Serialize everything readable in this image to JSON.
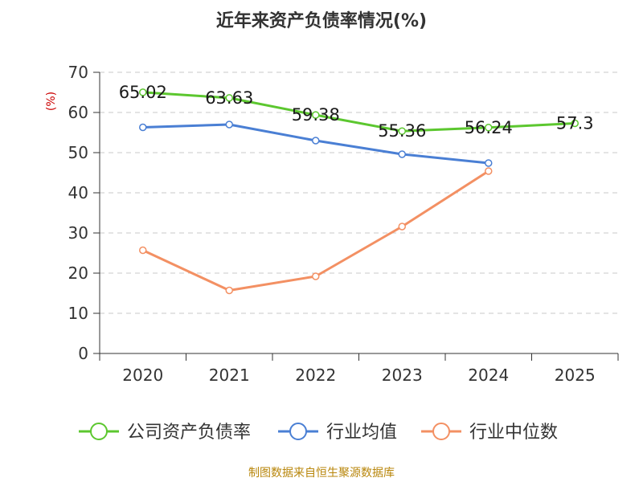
{
  "chart_data": {
    "type": "line",
    "title": "近年来资产负债率情况(%)",
    "ylabel": "(%)",
    "xlabel": "",
    "categories": [
      "2020",
      "2021",
      "2022",
      "2023",
      "2024",
      "2025"
    ],
    "ylim": [
      0,
      70
    ],
    "yticks": [
      0,
      10,
      20,
      30,
      40,
      50,
      60,
      70
    ],
    "grid": true,
    "legend_position": "bottom",
    "series": [
      {
        "name": "公司资产负债率",
        "color": "#5cc72f",
        "values": [
          65.02,
          63.63,
          59.38,
          55.36,
          56.24,
          57.3
        ],
        "labels": [
          "65.02",
          "63.63",
          "59.38",
          "55.36",
          "56.24",
          "57.3"
        ]
      },
      {
        "name": "行业均值",
        "color": "#4a7fd4",
        "values": [
          56.3,
          57.0,
          53.0,
          49.6,
          47.4,
          null
        ]
      },
      {
        "name": "行业中位数",
        "color": "#f39063",
        "values": [
          25.7,
          15.7,
          19.2,
          31.6,
          45.4,
          null
        ]
      }
    ]
  },
  "footer": {
    "source_text": "制图数据来自恒生聚源数据库"
  },
  "colors": {
    "axis": "#333333",
    "grid": "#c8c8c8",
    "ylabel": "#cc0000",
    "footer": "#b8860b"
  }
}
